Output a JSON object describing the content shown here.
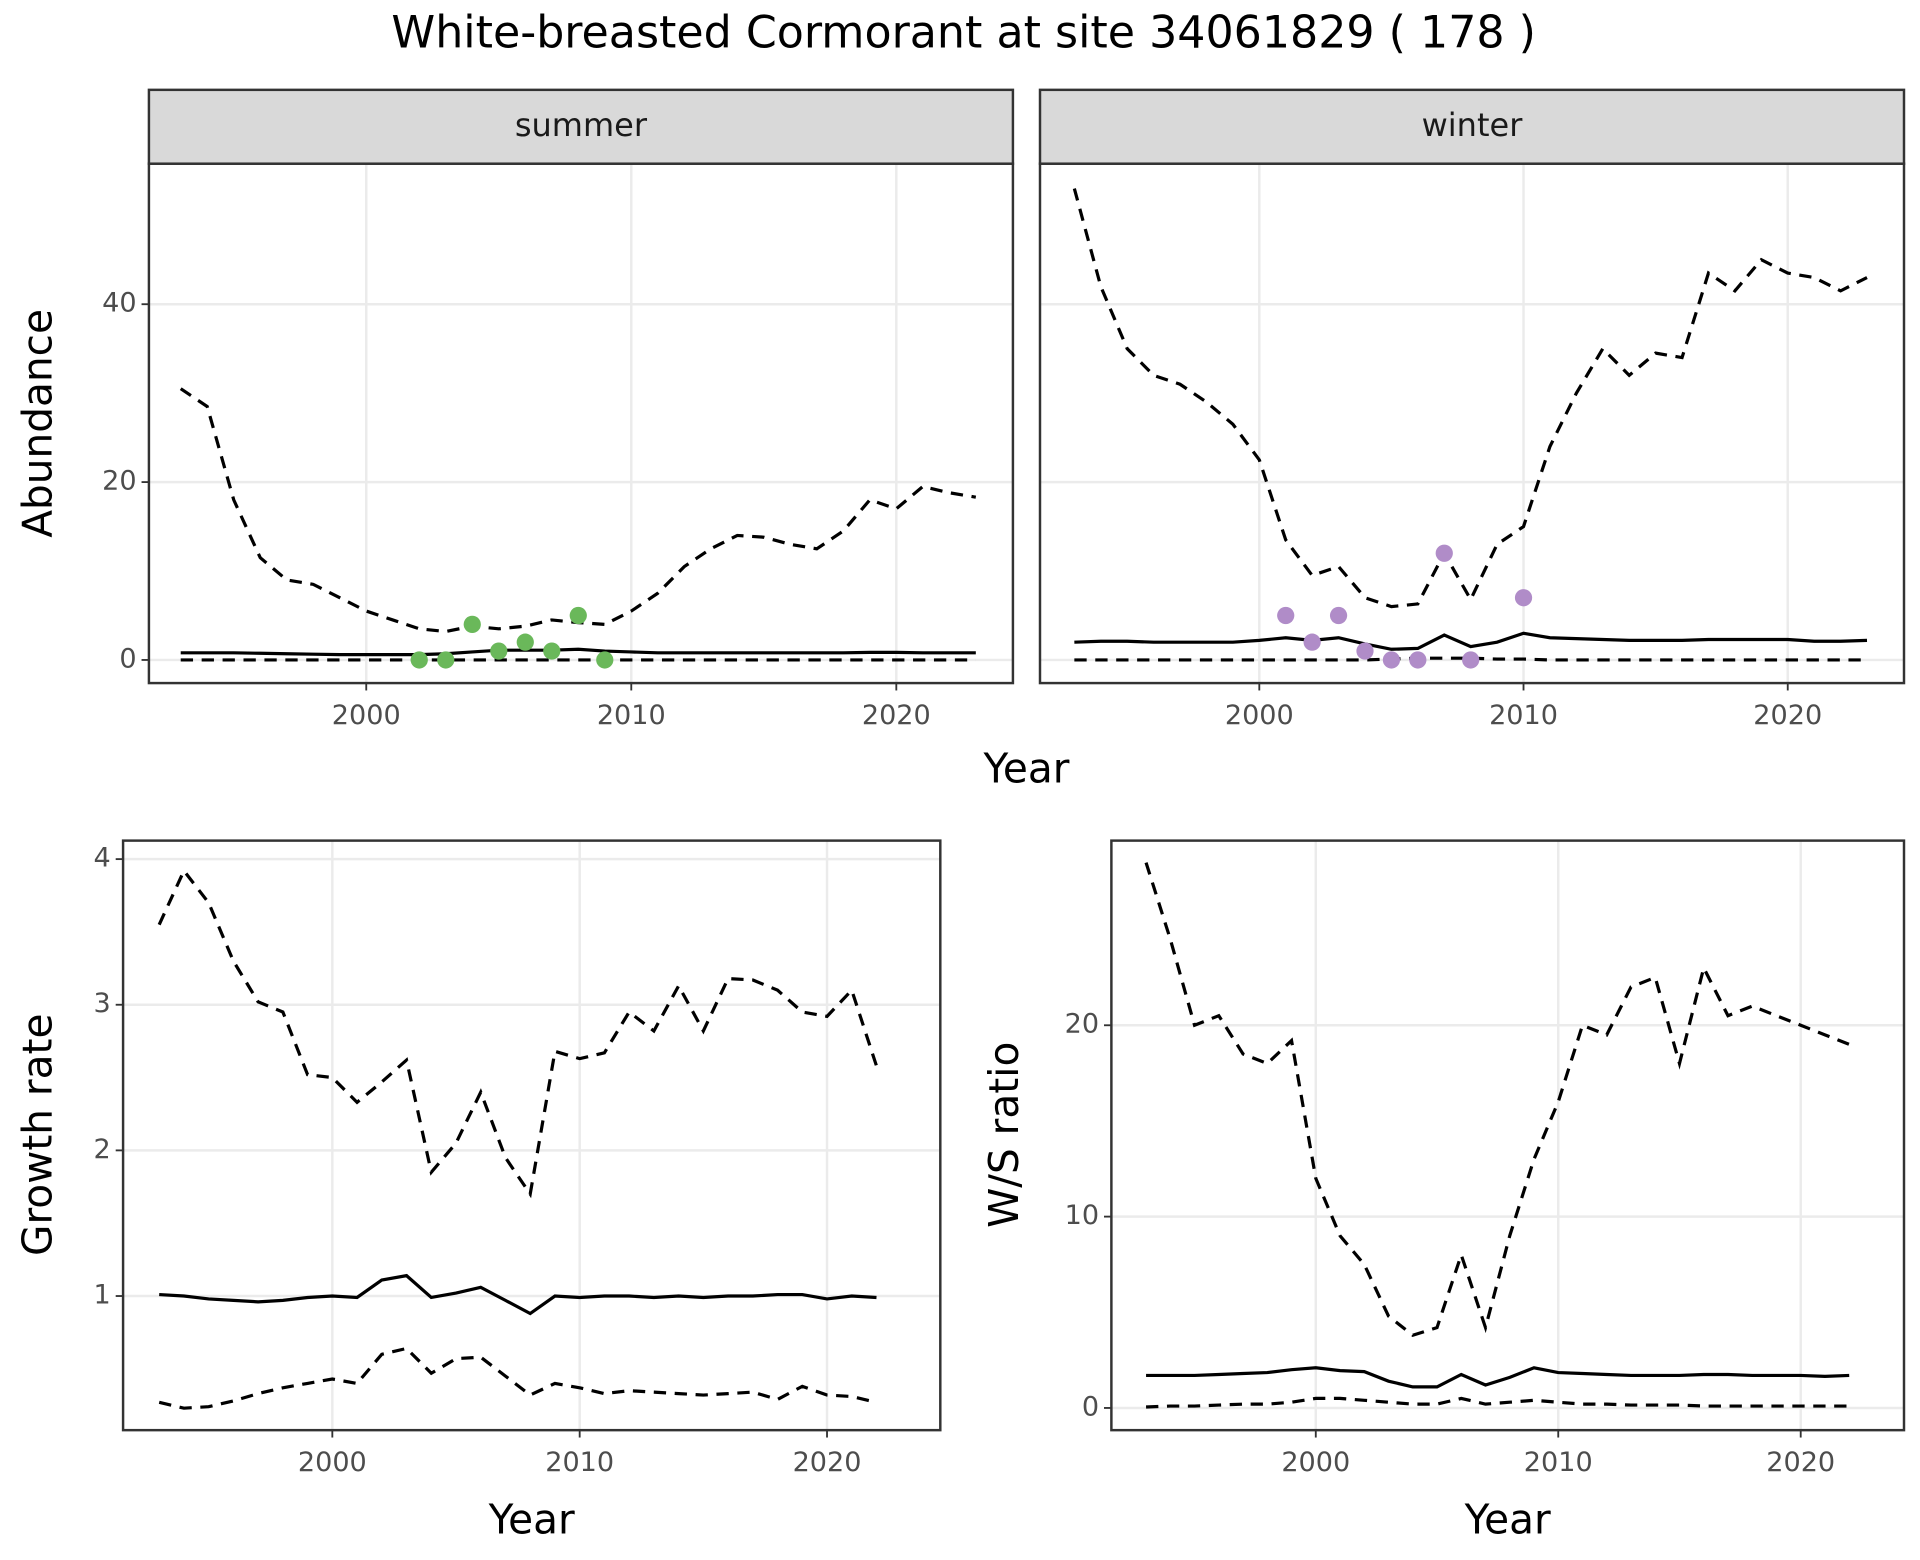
{
  "title": "White-breasted Cormorant at site 34061829 ( 178 )",
  "chart_data": [
    {
      "type": "line",
      "strip": "summer",
      "ylabel": "Abundance",
      "xlabel": "Year",
      "x": [
        1993,
        1994,
        1995,
        1996,
        1997,
        1998,
        1999,
        2000,
        2001,
        2002,
        2003,
        2004,
        2005,
        2006,
        2007,
        2008,
        2009,
        2010,
        2011,
        2012,
        2013,
        2014,
        2015,
        2016,
        2017,
        2018,
        2019,
        2020,
        2021,
        2022,
        2023
      ],
      "series": [
        {
          "color": "#000000",
          "dashed": true,
          "values": [
            30.5,
            28.5,
            18,
            11.5,
            9,
            8.5,
            7,
            5.5,
            4.5,
            3.5,
            3.2,
            3.8,
            3.5,
            3.8,
            4.5,
            4.2,
            4,
            5.5,
            7.5,
            10.5,
            12.5,
            14,
            13.8,
            13,
            12.5,
            14.5,
            18,
            17,
            19.5,
            18.8,
            18.3
          ]
        },
        {
          "color": "#000000",
          "dashed": false,
          "values": [
            0.8,
            0.8,
            0.8,
            0.75,
            0.7,
            0.65,
            0.6,
            0.6,
            0.6,
            0.6,
            0.7,
            0.9,
            1.1,
            1.1,
            1.1,
            1.2,
            1.0,
            0.9,
            0.8,
            0.8,
            0.8,
            0.8,
            0.8,
            0.8,
            0.8,
            0.8,
            0.85,
            0.85,
            0.8,
            0.8,
            0.8
          ]
        },
        {
          "color": "#000000",
          "dashed": true,
          "values": [
            0,
            0,
            0,
            0,
            0,
            0,
            0,
            0,
            0,
            0,
            0,
            0,
            0,
            0,
            0,
            0,
            0,
            0,
            0,
            0,
            0,
            0,
            0,
            0,
            0,
            0,
            0,
            0,
            0,
            0,
            0
          ]
        }
      ],
      "points": {
        "color": "#6ab85a",
        "x": [
          2002,
          2003,
          2004,
          2005,
          2006,
          2007,
          2008,
          2009
        ],
        "values": [
          0,
          0,
          4,
          1,
          2,
          1,
          5,
          0
        ]
      },
      "xlim": [
        1991.8,
        2024.4
      ],
      "xticks": [
        2000,
        2010,
        2020
      ],
      "ylim": [
        -2.6,
        55.8
      ],
      "yticks": [
        0,
        20,
        40
      ],
      "ytick_labels": true,
      "grid": true
    },
    {
      "type": "line",
      "strip": "winter",
      "x": [
        1993,
        1994,
        1995,
        1996,
        1997,
        1998,
        1999,
        2000,
        2001,
        2002,
        2003,
        2004,
        2005,
        2006,
        2007,
        2008,
        2009,
        2010,
        2011,
        2012,
        2013,
        2014,
        2015,
        2016,
        2017,
        2018,
        2019,
        2020,
        2021,
        2022,
        2023
      ],
      "series": [
        {
          "color": "#000000",
          "dashed": true,
          "values": [
            53,
            42,
            35,
            32,
            31,
            29,
            26.5,
            22.5,
            13.5,
            9.5,
            10.5,
            7,
            6,
            6.3,
            12,
            6.8,
            13,
            15,
            24,
            30,
            35,
            32,
            34.5,
            34,
            43.5,
            41.5,
            45,
            43.5,
            43,
            41.5,
            43
          ]
        },
        {
          "color": "#000000",
          "dashed": false,
          "values": [
            2,
            2.1,
            2.1,
            2,
            2,
            2,
            2,
            2.2,
            2.5,
            2.2,
            2.5,
            1.8,
            1.2,
            1.3,
            2.8,
            1.5,
            2,
            3,
            2.5,
            2.4,
            2.3,
            2.2,
            2.2,
            2.2,
            2.3,
            2.3,
            2.3,
            2.3,
            2.1,
            2.1,
            2.2
          ]
        },
        {
          "color": "#000000",
          "dashed": true,
          "values": [
            0,
            0,
            0,
            0,
            0,
            0,
            0,
            0,
            0,
            0,
            0,
            0,
            0.1,
            0.2,
            0.2,
            0.2,
            0.1,
            0.1,
            0,
            0,
            0,
            0,
            0,
            0,
            0,
            0,
            0,
            0,
            0,
            0,
            0
          ]
        }
      ],
      "points": {
        "color": "#b08cc8",
        "x": [
          2001,
          2002,
          2003,
          2004,
          2005,
          2006,
          2007,
          2008,
          2010
        ],
        "values": [
          5,
          2,
          5,
          1,
          0,
          0,
          12,
          0,
          7
        ]
      },
      "xlim": [
        1991.7,
        2024.4
      ],
      "xticks": [
        2000,
        2010,
        2020
      ],
      "ylim": [
        -2.6,
        55.8
      ],
      "yticks": [
        0,
        20,
        40
      ],
      "ytick_labels": false,
      "grid": true
    },
    {
      "type": "line",
      "ylabel": "Growth rate",
      "xlabel": "Year",
      "x": [
        1993,
        1994,
        1995,
        1996,
        1997,
        1998,
        1999,
        2000,
        2001,
        2002,
        2003,
        2004,
        2005,
        2006,
        2007,
        2008,
        2009,
        2010,
        2011,
        2012,
        2013,
        2014,
        2015,
        2016,
        2017,
        2018,
        2019,
        2020,
        2021,
        2022
      ],
      "series": [
        {
          "color": "#000000",
          "dashed": true,
          "values": [
            3.55,
            3.92,
            3.7,
            3.3,
            3.02,
            2.95,
            2.52,
            2.5,
            2.33,
            2.47,
            2.62,
            1.85,
            2.05,
            2.4,
            1.95,
            1.7,
            2.68,
            2.63,
            2.67,
            2.95,
            2.82,
            3.13,
            2.82,
            3.18,
            3.17,
            3.1,
            2.95,
            2.92,
            3.1,
            2.58
          ]
        },
        {
          "color": "#000000",
          "dashed": false,
          "values": [
            1.01,
            1.0,
            0.98,
            0.97,
            0.96,
            0.97,
            0.99,
            1.0,
            0.99,
            1.11,
            1.14,
            0.99,
            1.02,
            1.06,
            0.97,
            0.88,
            1.0,
            0.99,
            1.0,
            1.0,
            0.99,
            1.0,
            0.99,
            1.0,
            1.0,
            1.01,
            1.01,
            0.98,
            1.0,
            0.99
          ]
        },
        {
          "color": "#000000",
          "dashed": true,
          "values": [
            0.27,
            0.23,
            0.24,
            0.28,
            0.33,
            0.37,
            0.4,
            0.43,
            0.4,
            0.6,
            0.64,
            0.47,
            0.57,
            0.58,
            0.45,
            0.32,
            0.4,
            0.37,
            0.33,
            0.35,
            0.34,
            0.33,
            0.32,
            0.33,
            0.34,
            0.29,
            0.38,
            0.32,
            0.31,
            0.27
          ]
        }
      ],
      "xlim": [
        1991.54,
        2024.58
      ],
      "xticks": [
        2000,
        2010,
        2020
      ],
      "ylim": [
        0.079,
        4.127
      ],
      "yticks": [
        1,
        2,
        3,
        4
      ],
      "ytick_labels": true,
      "grid": true
    },
    {
      "type": "line",
      "ylabel": "W/S ratio",
      "xlabel": "Year",
      "x": [
        1993,
        1994,
        1995,
        1996,
        1997,
        1998,
        1999,
        2000,
        2001,
        2002,
        2003,
        2004,
        2005,
        2006,
        2007,
        2008,
        2009,
        2010,
        2011,
        2012,
        2013,
        2014,
        2015,
        2016,
        2017,
        2018,
        2019,
        2020,
        2021,
        2022
      ],
      "series": [
        {
          "color": "#000000",
          "dashed": true,
          "values": [
            28.5,
            24.5,
            20,
            20.5,
            18.5,
            18,
            19.2,
            12,
            9,
            7.5,
            4.8,
            3.8,
            4.2,
            8,
            4.2,
            9,
            13,
            16,
            20,
            19.5,
            22,
            22.5,
            18,
            23,
            20.5,
            21,
            20.5,
            20,
            19.5,
            19
          ]
        },
        {
          "color": "#000000",
          "dashed": false,
          "values": [
            1.7,
            1.7,
            1.7,
            1.75,
            1.8,
            1.85,
            2.0,
            2.1,
            1.95,
            1.9,
            1.4,
            1.1,
            1.1,
            1.75,
            1.2,
            1.6,
            2.1,
            1.85,
            1.8,
            1.75,
            1.7,
            1.7,
            1.7,
            1.75,
            1.75,
            1.7,
            1.7,
            1.7,
            1.65,
            1.7
          ]
        },
        {
          "color": "#000000",
          "dashed": true,
          "values": [
            0.05,
            0.1,
            0.1,
            0.15,
            0.2,
            0.2,
            0.3,
            0.5,
            0.5,
            0.4,
            0.3,
            0.2,
            0.2,
            0.5,
            0.2,
            0.3,
            0.4,
            0.3,
            0.2,
            0.2,
            0.15,
            0.15,
            0.15,
            0.1,
            0.1,
            0.1,
            0.1,
            0.1,
            0.1,
            0.1
          ]
        }
      ],
      "xlim": [
        1991.57,
        2024.26
      ],
      "xticks": [
        2000,
        2010,
        2020
      ],
      "ylim": [
        -1.16,
        29.65
      ],
      "yticks": [
        0,
        10,
        20
      ],
      "ytick_labels": true,
      "grid": true
    }
  ]
}
